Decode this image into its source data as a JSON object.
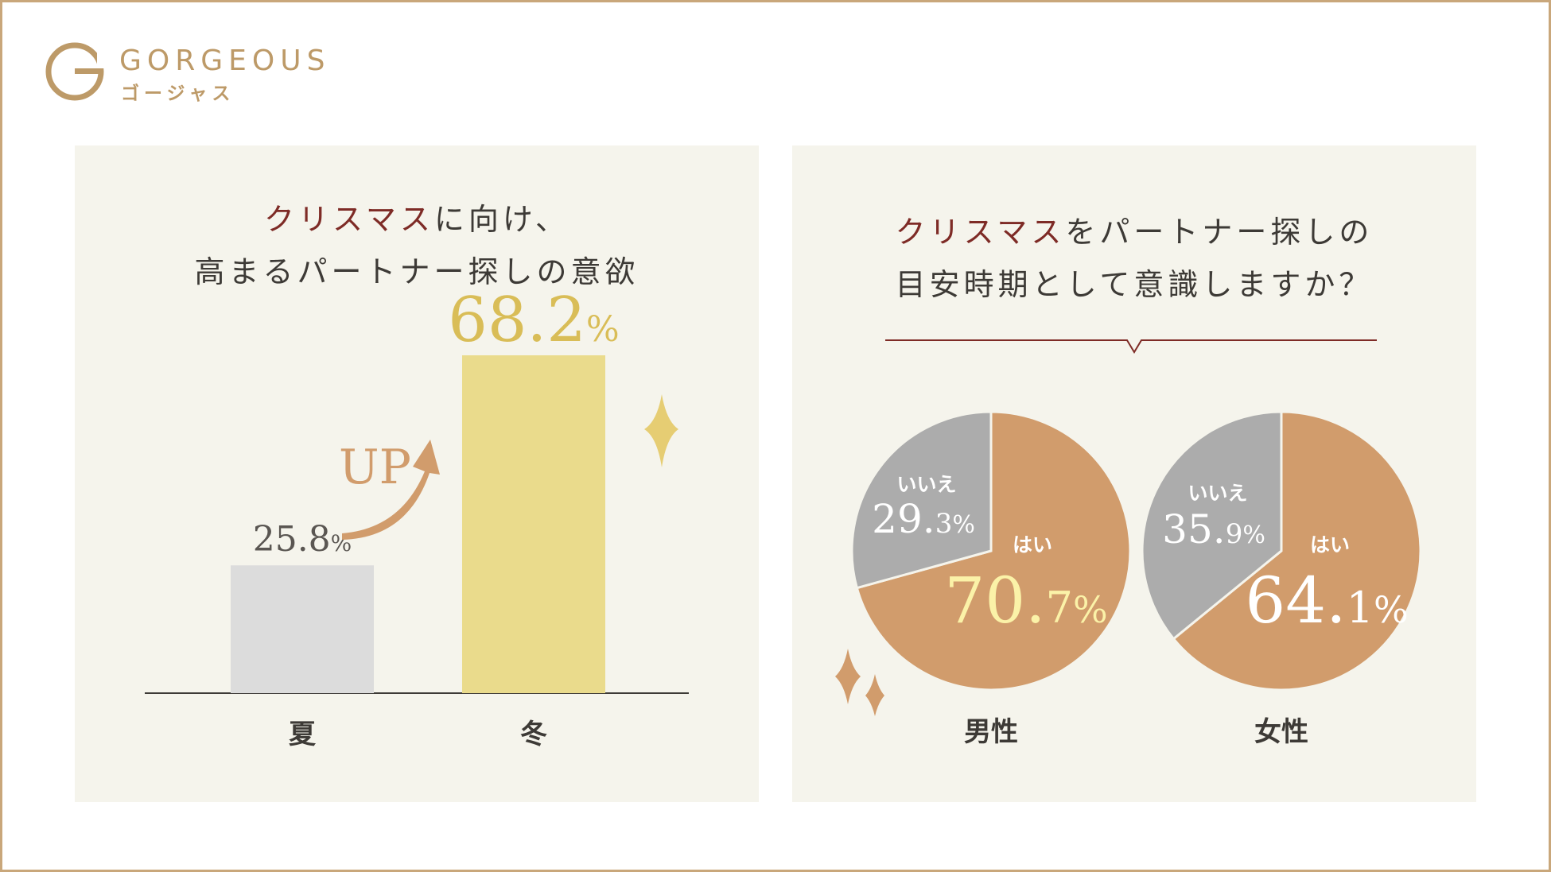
{
  "brand": {
    "name": "GORGEOUS",
    "kana": "ゴージャス",
    "color": "#bd9a68"
  },
  "left_panel": {
    "title_accent": "クリスマス",
    "title_line1_rest": "に向け、",
    "title_line2": "高まるパートナー探しの意欲",
    "up_label": "UP"
  },
  "right_panel": {
    "title_accent": "クリスマス",
    "title_line1_rest": "をパートナー探しの",
    "title_line2": "目安時期として意識しますか？"
  },
  "colors": {
    "accent_red": "#7e2b26",
    "gold": "#d9bd57",
    "bar_summer": "#dcdcdc",
    "bar_winter": "#eadb8c",
    "pie_yes": "#d19c6c",
    "pie_no": "#acacac",
    "highlight_yellow": "#fbf2a8",
    "panel_bg": "#f5f4ec",
    "frame": "#c9a77b"
  },
  "chart_data": [
    {
      "type": "bar",
      "categories": [
        "夏",
        "冬"
      ],
      "values": [
        25.8,
        68.2
      ],
      "value_labels": [
        {
          "num": "25.8",
          "unit": "%"
        },
        {
          "num": "68.2",
          "unit": "%"
        }
      ],
      "ylim": [
        0,
        75
      ]
    },
    {
      "type": "pie",
      "label": "男性",
      "slices": [
        {
          "label": "はい",
          "value": 70.7,
          "num_big": "70.",
          "num_small": "7",
          "unit": "%"
        },
        {
          "label": "いいえ",
          "value": 29.3,
          "num_big": "29.",
          "num_small": "3",
          "unit": "%"
        }
      ]
    },
    {
      "type": "pie",
      "label": "女性",
      "slices": [
        {
          "label": "はい",
          "value": 64.1,
          "num_big": "64.",
          "num_small": "1",
          "unit": "%"
        },
        {
          "label": "いいえ",
          "value": 35.9,
          "num_big": "35.",
          "num_small": "9",
          "unit": "%"
        }
      ]
    }
  ]
}
